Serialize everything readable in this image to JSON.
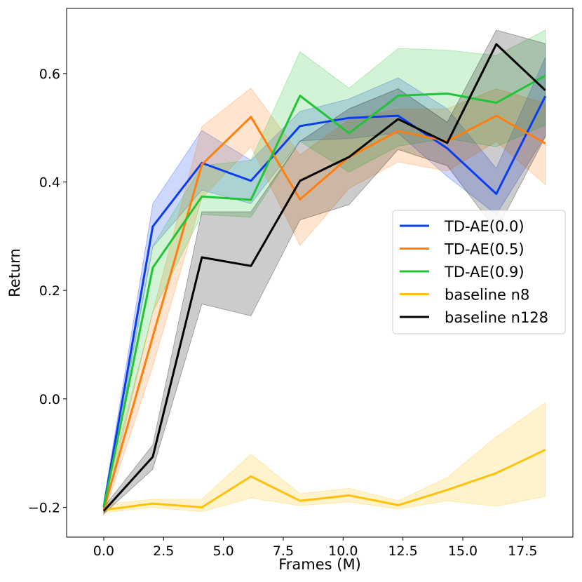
{
  "chart_data": {
    "type": "line",
    "title": "",
    "xlabel": "Frames (M)",
    "ylabel": "Return",
    "xlim": [
      -1.55,
      19.6
    ],
    "ylim": [
      -0.255,
      0.72
    ],
    "xticks": [
      0.0,
      2.5,
      5.0,
      7.5,
      10.0,
      12.5,
      15.0,
      17.5
    ],
    "xtick_labels": [
      "0.0",
      "2.5",
      "5.0",
      "7.5",
      "10.0",
      "12.5",
      "15.0",
      "17.5"
    ],
    "yticks": [
      -0.2,
      0.0,
      0.2,
      0.4,
      0.6
    ],
    "ytick_labels": [
      "−0.2",
      "0.0",
      "0.2",
      "0.4",
      "0.6"
    ],
    "grid": false,
    "legend_position": "center-right",
    "x": [
      0.0,
      2.05,
      4.1,
      6.15,
      8.2,
      10.25,
      12.3,
      14.35,
      16.4,
      18.45
    ],
    "series": [
      {
        "name": "TD-AE(0.0)",
        "color": "#0a3cf0",
        "band_opacity": 0.2,
        "values": [
          -0.2,
          0.318,
          0.435,
          0.402,
          0.503,
          0.518,
          0.522,
          0.462,
          0.378,
          0.558
        ],
        "upper": [
          -0.19,
          0.36,
          0.495,
          0.44,
          0.53,
          0.553,
          0.592,
          0.535,
          0.425,
          0.63
        ],
        "lower": [
          -0.21,
          0.28,
          0.385,
          0.36,
          0.476,
          0.48,
          0.49,
          0.41,
          0.34,
          0.485
        ]
      },
      {
        "name": "TD-AE(0.5)",
        "color": "#ff7f0e",
        "band_opacity": 0.2,
        "values": [
          -0.205,
          0.115,
          0.432,
          0.52,
          0.368,
          0.446,
          0.494,
          0.475,
          0.522,
          0.471
        ],
        "upper": [
          -0.19,
          0.16,
          0.502,
          0.573,
          0.45,
          0.515,
          0.535,
          0.535,
          0.572,
          0.545
        ],
        "lower": [
          -0.215,
          0.06,
          0.37,
          0.465,
          0.283,
          0.388,
          0.437,
          0.42,
          0.475,
          0.395
        ]
      },
      {
        "name": "TD-AE(0.9)",
        "color": "#22c437",
        "band_opacity": 0.2,
        "values": [
          -0.2,
          0.242,
          0.373,
          0.367,
          0.559,
          0.49,
          0.559,
          0.563,
          0.546,
          0.596
        ],
        "upper": [
          -0.19,
          0.282,
          0.43,
          0.44,
          0.64,
          0.573,
          0.646,
          0.643,
          0.633,
          0.68
        ],
        "lower": [
          -0.21,
          0.16,
          0.34,
          0.335,
          0.475,
          0.418,
          0.466,
          0.48,
          0.465,
          0.505
        ]
      },
      {
        "name": "baseline n8",
        "color": "#ffc20a",
        "band_opacity": 0.2,
        "values": [
          -0.205,
          -0.193,
          -0.2,
          -0.143,
          -0.188,
          -0.178,
          -0.196,
          -0.168,
          -0.137,
          -0.094
        ],
        "upper": [
          -0.195,
          -0.185,
          -0.185,
          -0.102,
          -0.175,
          -0.165,
          -0.188,
          -0.145,
          -0.07,
          -0.007
        ],
        "lower": [
          -0.21,
          -0.2,
          -0.208,
          -0.183,
          -0.197,
          -0.19,
          -0.203,
          -0.188,
          -0.198,
          -0.18
        ]
      },
      {
        "name": "baseline n128",
        "color": "#000000",
        "band_opacity": 0.2,
        "values": [
          -0.207,
          -0.107,
          0.261,
          0.245,
          0.402,
          0.446,
          0.516,
          0.472,
          0.654,
          0.569
        ],
        "upper": [
          -0.2,
          -0.085,
          0.345,
          0.345,
          0.475,
          0.535,
          0.572,
          0.51,
          0.68,
          0.655
        ],
        "lower": [
          -0.212,
          -0.13,
          0.175,
          0.153,
          0.33,
          0.358,
          0.46,
          0.43,
          0.31,
          0.483
        ]
      }
    ]
  }
}
